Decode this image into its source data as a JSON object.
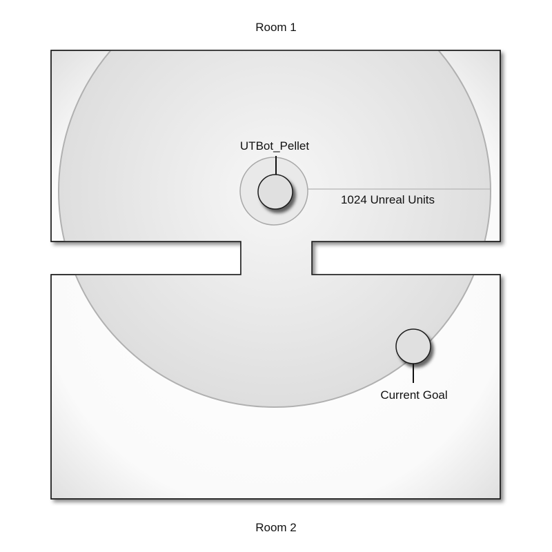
{
  "rooms": {
    "room1_label": "Room 1",
    "room2_label": "Room 2"
  },
  "labels": {
    "pellet": "UTBot_Pellet",
    "radius": "1024 Unreal Units",
    "goal": "Current Goal"
  },
  "colors": {
    "wall_stroke": "#1a1a1a",
    "room_fill": "#ffffff",
    "room_edge_shade": "#e6e6e6",
    "radius_circle_fill": "#e8e8e8",
    "radius_circle_stroke": "#b0b0b0",
    "node_fill": "#e2e2e2",
    "node_stroke": "#1a1a1a",
    "text": "#111111"
  }
}
